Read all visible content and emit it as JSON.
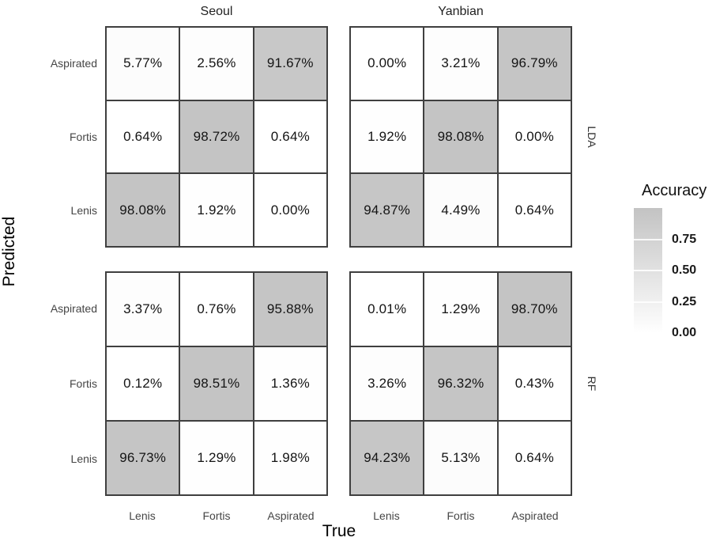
{
  "colors": {
    "cell_high": "#c3c3c3",
    "cell_low": "#ffffff",
    "grid_line": "#3f3f3f",
    "background": "#ffffff"
  },
  "chart_data": {
    "type": "heatmap",
    "title": "",
    "xlabel": "True",
    "ylabel": "Predicted",
    "col_facets": [
      "Seoul",
      "Yanbian"
    ],
    "row_facets": [
      "LDA",
      "RF"
    ],
    "x_categories": [
      "Lenis",
      "Fortis",
      "Aspirated"
    ],
    "y_categories": [
      "Aspirated",
      "Fortis",
      "Lenis"
    ],
    "legend": {
      "title": "Accuracy",
      "ticks": [
        "0.75",
        "0.50",
        "0.25",
        "0.00"
      ],
      "range": [
        0,
        1
      ]
    },
    "facets": [
      {
        "col": "Seoul",
        "row": "LDA",
        "rows": [
          [
            5.77,
            2.56,
            91.67
          ],
          [
            0.64,
            98.72,
            0.64
          ],
          [
            98.08,
            1.92,
            0.0
          ]
        ]
      },
      {
        "col": "Yanbian",
        "row": "LDA",
        "rows": [
          [
            0.0,
            3.21,
            96.79
          ],
          [
            1.92,
            98.08,
            0.0
          ],
          [
            94.87,
            4.49,
            0.64
          ]
        ]
      },
      {
        "col": "Seoul",
        "row": "RF",
        "rows": [
          [
            3.37,
            0.76,
            95.88
          ],
          [
            0.12,
            98.51,
            1.36
          ],
          [
            96.73,
            1.29,
            1.98
          ]
        ]
      },
      {
        "col": "Yanbian",
        "row": "RF",
        "rows": [
          [
            0.01,
            1.29,
            98.7
          ],
          [
            3.26,
            96.32,
            0.43
          ],
          [
            94.23,
            5.13,
            0.64
          ]
        ]
      }
    ]
  }
}
